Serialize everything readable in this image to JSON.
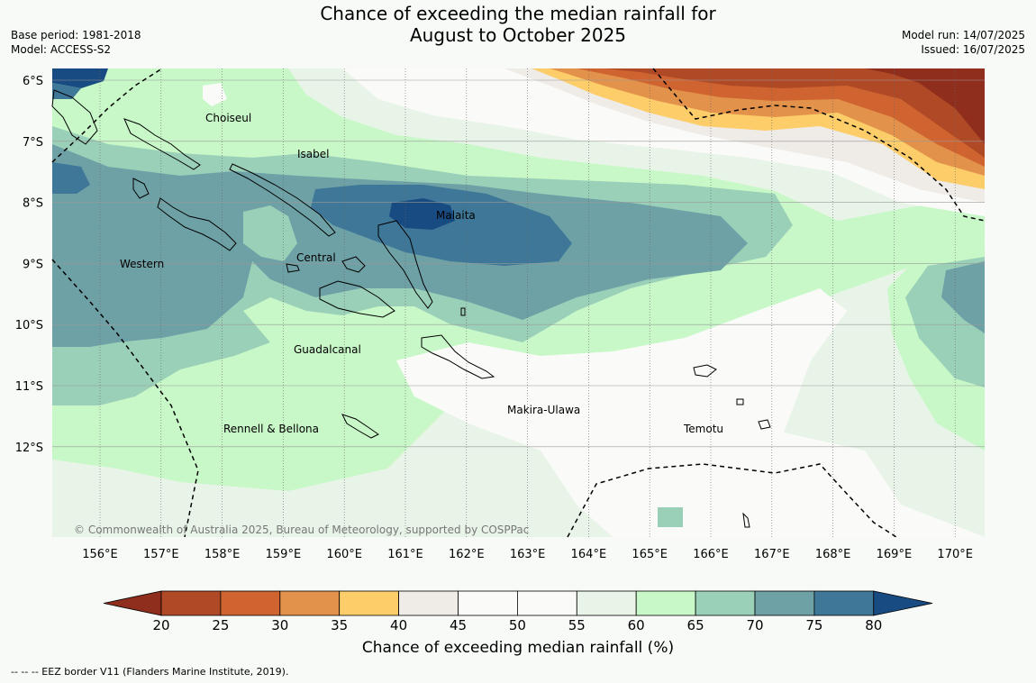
{
  "title": {
    "line1": "Chance of exceeding the median rainfall for",
    "line2": "August to October 2025"
  },
  "meta": {
    "base_period": "Base period: 1981-2018",
    "model": "Model: ACCESS-S2",
    "model_run": "Model run: 14/07/2025",
    "issued": "Issued: 16/07/2025"
  },
  "map": {
    "lat_ticks": [
      "6°S",
      "7°S",
      "8°S",
      "9°S",
      "10°S",
      "11°S",
      "12°S"
    ],
    "lon_ticks": [
      "156°E",
      "157°E",
      "158°E",
      "159°E",
      "160°E",
      "161°E",
      "162°E",
      "163°E",
      "164°E",
      "165°E",
      "166°E",
      "167°E",
      "168°E",
      "169°E",
      "170°E"
    ],
    "provinces": [
      "Choiseul",
      "Isabel",
      "Malaita",
      "Western",
      "Central",
      "Guadalcanal",
      "Makira-Ulawa",
      "Rennell & Bellona",
      "Temotu"
    ],
    "copyright": "© Commonwealth of Australia 2025, Bureau of Meteorology, supported by COSPPac"
  },
  "colorbar": {
    "ticks": [
      "20",
      "25",
      "30",
      "35",
      "40",
      "45",
      "50",
      "55",
      "60",
      "65",
      "70",
      "75",
      "80"
    ],
    "colors": [
      "#8f2e1c",
      "#b04a26",
      "#cf6430",
      "#e2924a",
      "#fdcd6a",
      "#efebe6",
      "#fafbf9",
      "#fafbf9",
      "#e9f4e9",
      "#c8f8c8",
      "#9bd0b8",
      "#6ea1a6",
      "#3e7797",
      "#184b82"
    ],
    "label": "Chance of exceeding median rainfall (%)"
  },
  "footnote": "--  --  -- EEZ border V11 (Flanders Marine Institute, 2019)."
}
